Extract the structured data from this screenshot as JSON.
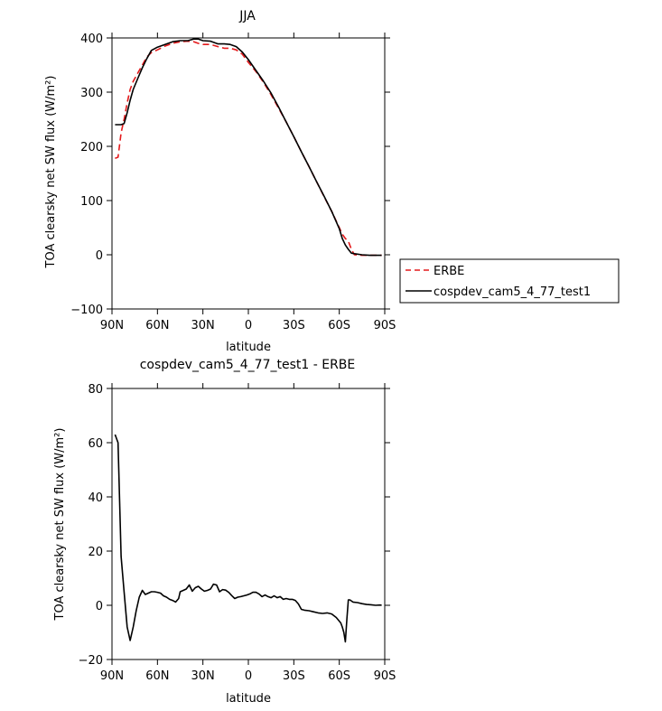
{
  "chart_data": [
    {
      "type": "line",
      "title": "JJA",
      "xlabel": "latitude",
      "ylabel": "TOA clearsky net SW flux (W/m²)",
      "ylim": [
        -100,
        400
      ],
      "yticks": [
        -100,
        0,
        100,
        200,
        300,
        400
      ],
      "xlim": [
        90,
        -90
      ],
      "xticks": [
        90,
        60,
        30,
        0,
        -30,
        -60,
        -90
      ],
      "xticklabels": [
        "90N",
        "60N",
        "30N",
        "0",
        "30S",
        "60S",
        "90S"
      ],
      "grid": false,
      "legend": "right-outside",
      "series": [
        {
          "name": "ERBE",
          "color": "#e41a1c",
          "dash": "dashed",
          "points": [
            [
              88,
              178
            ],
            [
              86,
              180
            ],
            [
              84,
              225
            ],
            [
              82,
              250
            ],
            [
              80,
              280
            ],
            [
              78,
              305
            ],
            [
              76,
              320
            ],
            [
              73,
              335
            ],
            [
              70,
              350
            ],
            [
              67,
              365
            ],
            [
              64,
              373
            ],
            [
              60,
              378
            ],
            [
              55,
              385
            ],
            [
              50,
              390
            ],
            [
              45,
              393
            ],
            [
              40,
              394
            ],
            [
              36,
              393
            ],
            [
              33,
              390
            ],
            [
              30,
              388
            ],
            [
              25,
              388
            ],
            [
              20,
              384
            ],
            [
              16,
              381
            ],
            [
              12,
              381
            ],
            [
              8,
              378
            ],
            [
              4,
              370
            ],
            [
              0,
              355
            ],
            [
              -5,
              338
            ],
            [
              -10,
              318
            ],
            [
              -15,
              295
            ],
            [
              -20,
              270
            ],
            [
              -25,
              245
            ],
            [
              -30,
              218
            ],
            [
              -35,
              190
            ],
            [
              -40,
              163
            ],
            [
              -45,
              135
            ],
            [
              -50,
              107
            ],
            [
              -55,
              80
            ],
            [
              -60,
              50
            ],
            [
              -62,
              38
            ],
            [
              -64,
              30
            ],
            [
              -66,
              25
            ],
            [
              -68,
              10
            ],
            [
              -70,
              0
            ],
            [
              -75,
              -1
            ],
            [
              -80,
              -1
            ],
            [
              -85,
              -1
            ],
            [
              -88,
              -1
            ]
          ]
        },
        {
          "name": "cospdev_cam5_4_77_test1",
          "color": "#000000",
          "dash": "solid",
          "points": [
            [
              88,
              240
            ],
            [
              86,
              240
            ],
            [
              84,
              240
            ],
            [
              82,
              242
            ],
            [
              80,
              262
            ],
            [
              78,
              285
            ],
            [
              76,
              305
            ],
            [
              73,
              325
            ],
            [
              70,
              345
            ],
            [
              67,
              362
            ],
            [
              64,
              377
            ],
            [
              60,
              383
            ],
            [
              55,
              388
            ],
            [
              50,
              393
            ],
            [
              45,
              395
            ],
            [
              40,
              395
            ],
            [
              36,
              398
            ],
            [
              33,
              398
            ],
            [
              30,
              395
            ],
            [
              25,
              394
            ],
            [
              20,
              389
            ],
            [
              16,
              389
            ],
            [
              12,
              388
            ],
            [
              8,
              384
            ],
            [
              4,
              374
            ],
            [
              0,
              360
            ],
            [
              -5,
              340
            ],
            [
              -10,
              320
            ],
            [
              -15,
              298
            ],
            [
              -20,
              272
            ],
            [
              -25,
              245
            ],
            [
              -30,
              218
            ],
            [
              -35,
              190
            ],
            [
              -40,
              163
            ],
            [
              -45,
              135
            ],
            [
              -50,
              108
            ],
            [
              -55,
              80
            ],
            [
              -60,
              48
            ],
            [
              -62,
              30
            ],
            [
              -64,
              18
            ],
            [
              -66,
              10
            ],
            [
              -68,
              3
            ],
            [
              -70,
              2
            ],
            [
              -75,
              0
            ],
            [
              -80,
              -1
            ],
            [
              -85,
              -1
            ],
            [
              -88,
              -1
            ]
          ]
        }
      ]
    },
    {
      "type": "line",
      "title": "cospdev_cam5_4_77_test1 - ERBE",
      "xlabel": "latitude",
      "ylabel": "TOA clearsky net SW flux (W/m²)",
      "ylim": [
        -20,
        80
      ],
      "yticks": [
        -20,
        0,
        20,
        40,
        60,
        80
      ],
      "xlim": [
        90,
        -90
      ],
      "xticks": [
        90,
        60,
        30,
        0,
        -30,
        -60,
        -90
      ],
      "xticklabels": [
        "90N",
        "60N",
        "30N",
        "0",
        "30S",
        "60S",
        "90S"
      ],
      "grid": false,
      "series": [
        {
          "color": "#000000",
          "dash": "solid",
          "points": [
            [
              88,
              63
            ],
            [
              86,
              60
            ],
            [
              84,
              18
            ],
            [
              82,
              5
            ],
            [
              80,
              -8
            ],
            [
              78,
              -13
            ],
            [
              76,
              -8
            ],
            [
              74,
              -2
            ],
            [
              72,
              3
            ],
            [
              70,
              5.5
            ],
            [
              68,
              4
            ],
            [
              66,
              4.5
            ],
            [
              64,
              5
            ],
            [
              62,
              5
            ],
            [
              60,
              4.8
            ],
            [
              58,
              4.5
            ],
            [
              56,
              3.5
            ],
            [
              54,
              3
            ],
            [
              52,
              2.2
            ],
            [
              50,
              1.8
            ],
            [
              48,
              1.2
            ],
            [
              46,
              2.5
            ],
            [
              45,
              5
            ],
            [
              43,
              5.5
            ],
            [
              41,
              6
            ],
            [
              39,
              7.5
            ],
            [
              37,
              5.2
            ],
            [
              35,
              6.5
            ],
            [
              33,
              7
            ],
            [
              31,
              6
            ],
            [
              29,
              5.2
            ],
            [
              27,
              5.5
            ],
            [
              25,
              6
            ],
            [
              23,
              7.8
            ],
            [
              21,
              7.5
            ],
            [
              19,
              5
            ],
            [
              17,
              5.8
            ],
            [
              15,
              5.6
            ],
            [
              13,
              4.8
            ],
            [
              11,
              3.6
            ],
            [
              9,
              2.5
            ],
            [
              7,
              3
            ],
            [
              5,
              3.2
            ],
            [
              3,
              3.5
            ],
            [
              1,
              3.8
            ],
            [
              -1,
              4.2
            ],
            [
              -3,
              4.8
            ],
            [
              -5,
              4.8
            ],
            [
              -7,
              4.2
            ],
            [
              -9,
              3.2
            ],
            [
              -11,
              3.8
            ],
            [
              -13,
              3.2
            ],
            [
              -15,
              2.8
            ],
            [
              -17,
              3.5
            ],
            [
              -19,
              2.8
            ],
            [
              -21,
              3.2
            ],
            [
              -23,
              2.2
            ],
            [
              -25,
              2.5
            ],
            [
              -27,
              2.2
            ],
            [
              -29,
              2.2
            ],
            [
              -31,
              1.8
            ],
            [
              -33,
              0.5
            ],
            [
              -35,
              -1.5
            ],
            [
              -37,
              -1.8
            ],
            [
              -40,
              -2
            ],
            [
              -43,
              -2.4
            ],
            [
              -46,
              -2.8
            ],
            [
              -49,
              -3
            ],
            [
              -52,
              -2.8
            ],
            [
              -55,
              -3.2
            ],
            [
              -58,
              -4.5
            ],
            [
              -61,
              -6.5
            ],
            [
              -62,
              -8
            ],
            [
              -63,
              -10
            ],
            [
              -64,
              -13.5
            ],
            [
              -65,
              -5
            ],
            [
              -66,
              2
            ],
            [
              -67,
              2
            ],
            [
              -69,
              1.2
            ],
            [
              -72,
              1
            ],
            [
              -75,
              0.6
            ],
            [
              -78,
              0.3
            ],
            [
              -81,
              0.2
            ],
            [
              -84,
              0
            ],
            [
              -87,
              0.1
            ],
            [
              -88,
              0
            ]
          ]
        }
      ]
    }
  ]
}
